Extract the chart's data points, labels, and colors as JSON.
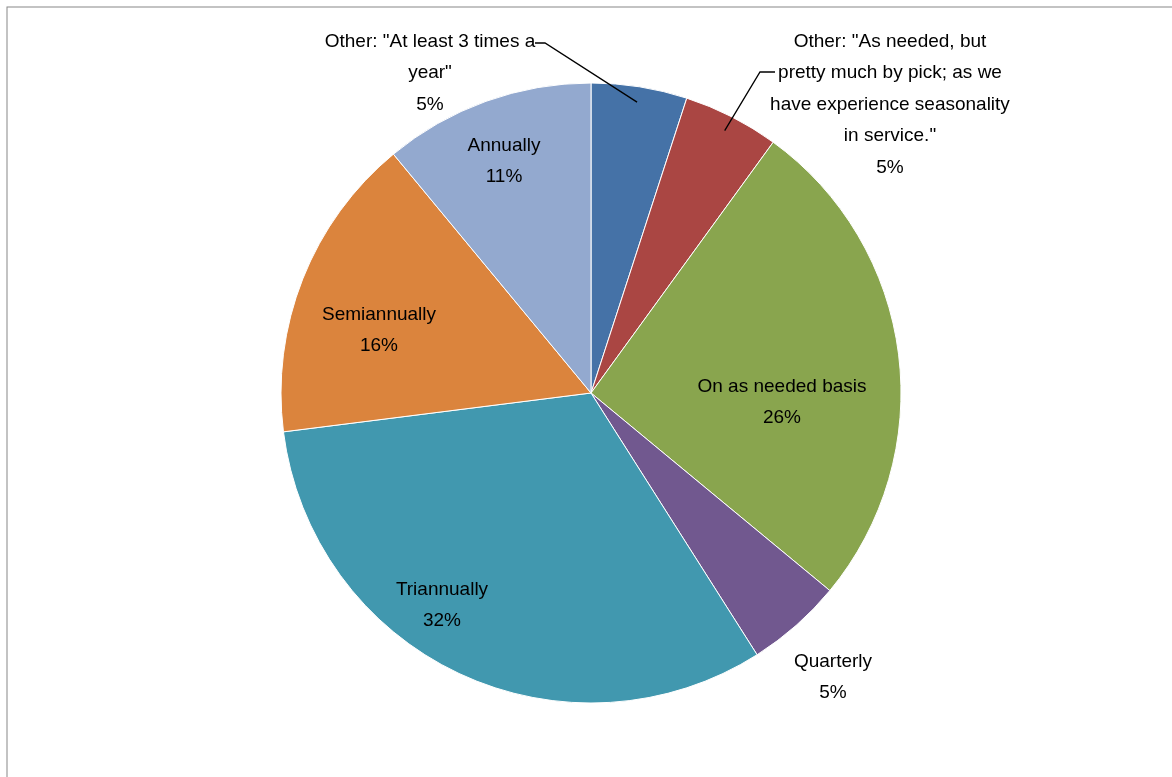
{
  "chart_data": {
    "type": "pie",
    "categories": [
      "Other: \"At least 3 times a year\"",
      "Other: \"As needed, but pretty much by pick; as we have experience seasonality in service.\"",
      "On as needed basis",
      "Quarterly",
      "Triannually",
      "Semiannually",
      "Annually"
    ],
    "values": [
      5,
      5,
      26,
      5,
      32,
      16,
      11
    ],
    "value_labels": [
      "5%",
      "5%",
      "26%",
      "5%",
      "32%",
      "16%",
      "11%"
    ],
    "colors": [
      "#4572a7",
      "#aa4643",
      "#89a54e",
      "#71588f",
      "#4198af",
      "#db843d",
      "#93a9cf"
    ]
  }
}
